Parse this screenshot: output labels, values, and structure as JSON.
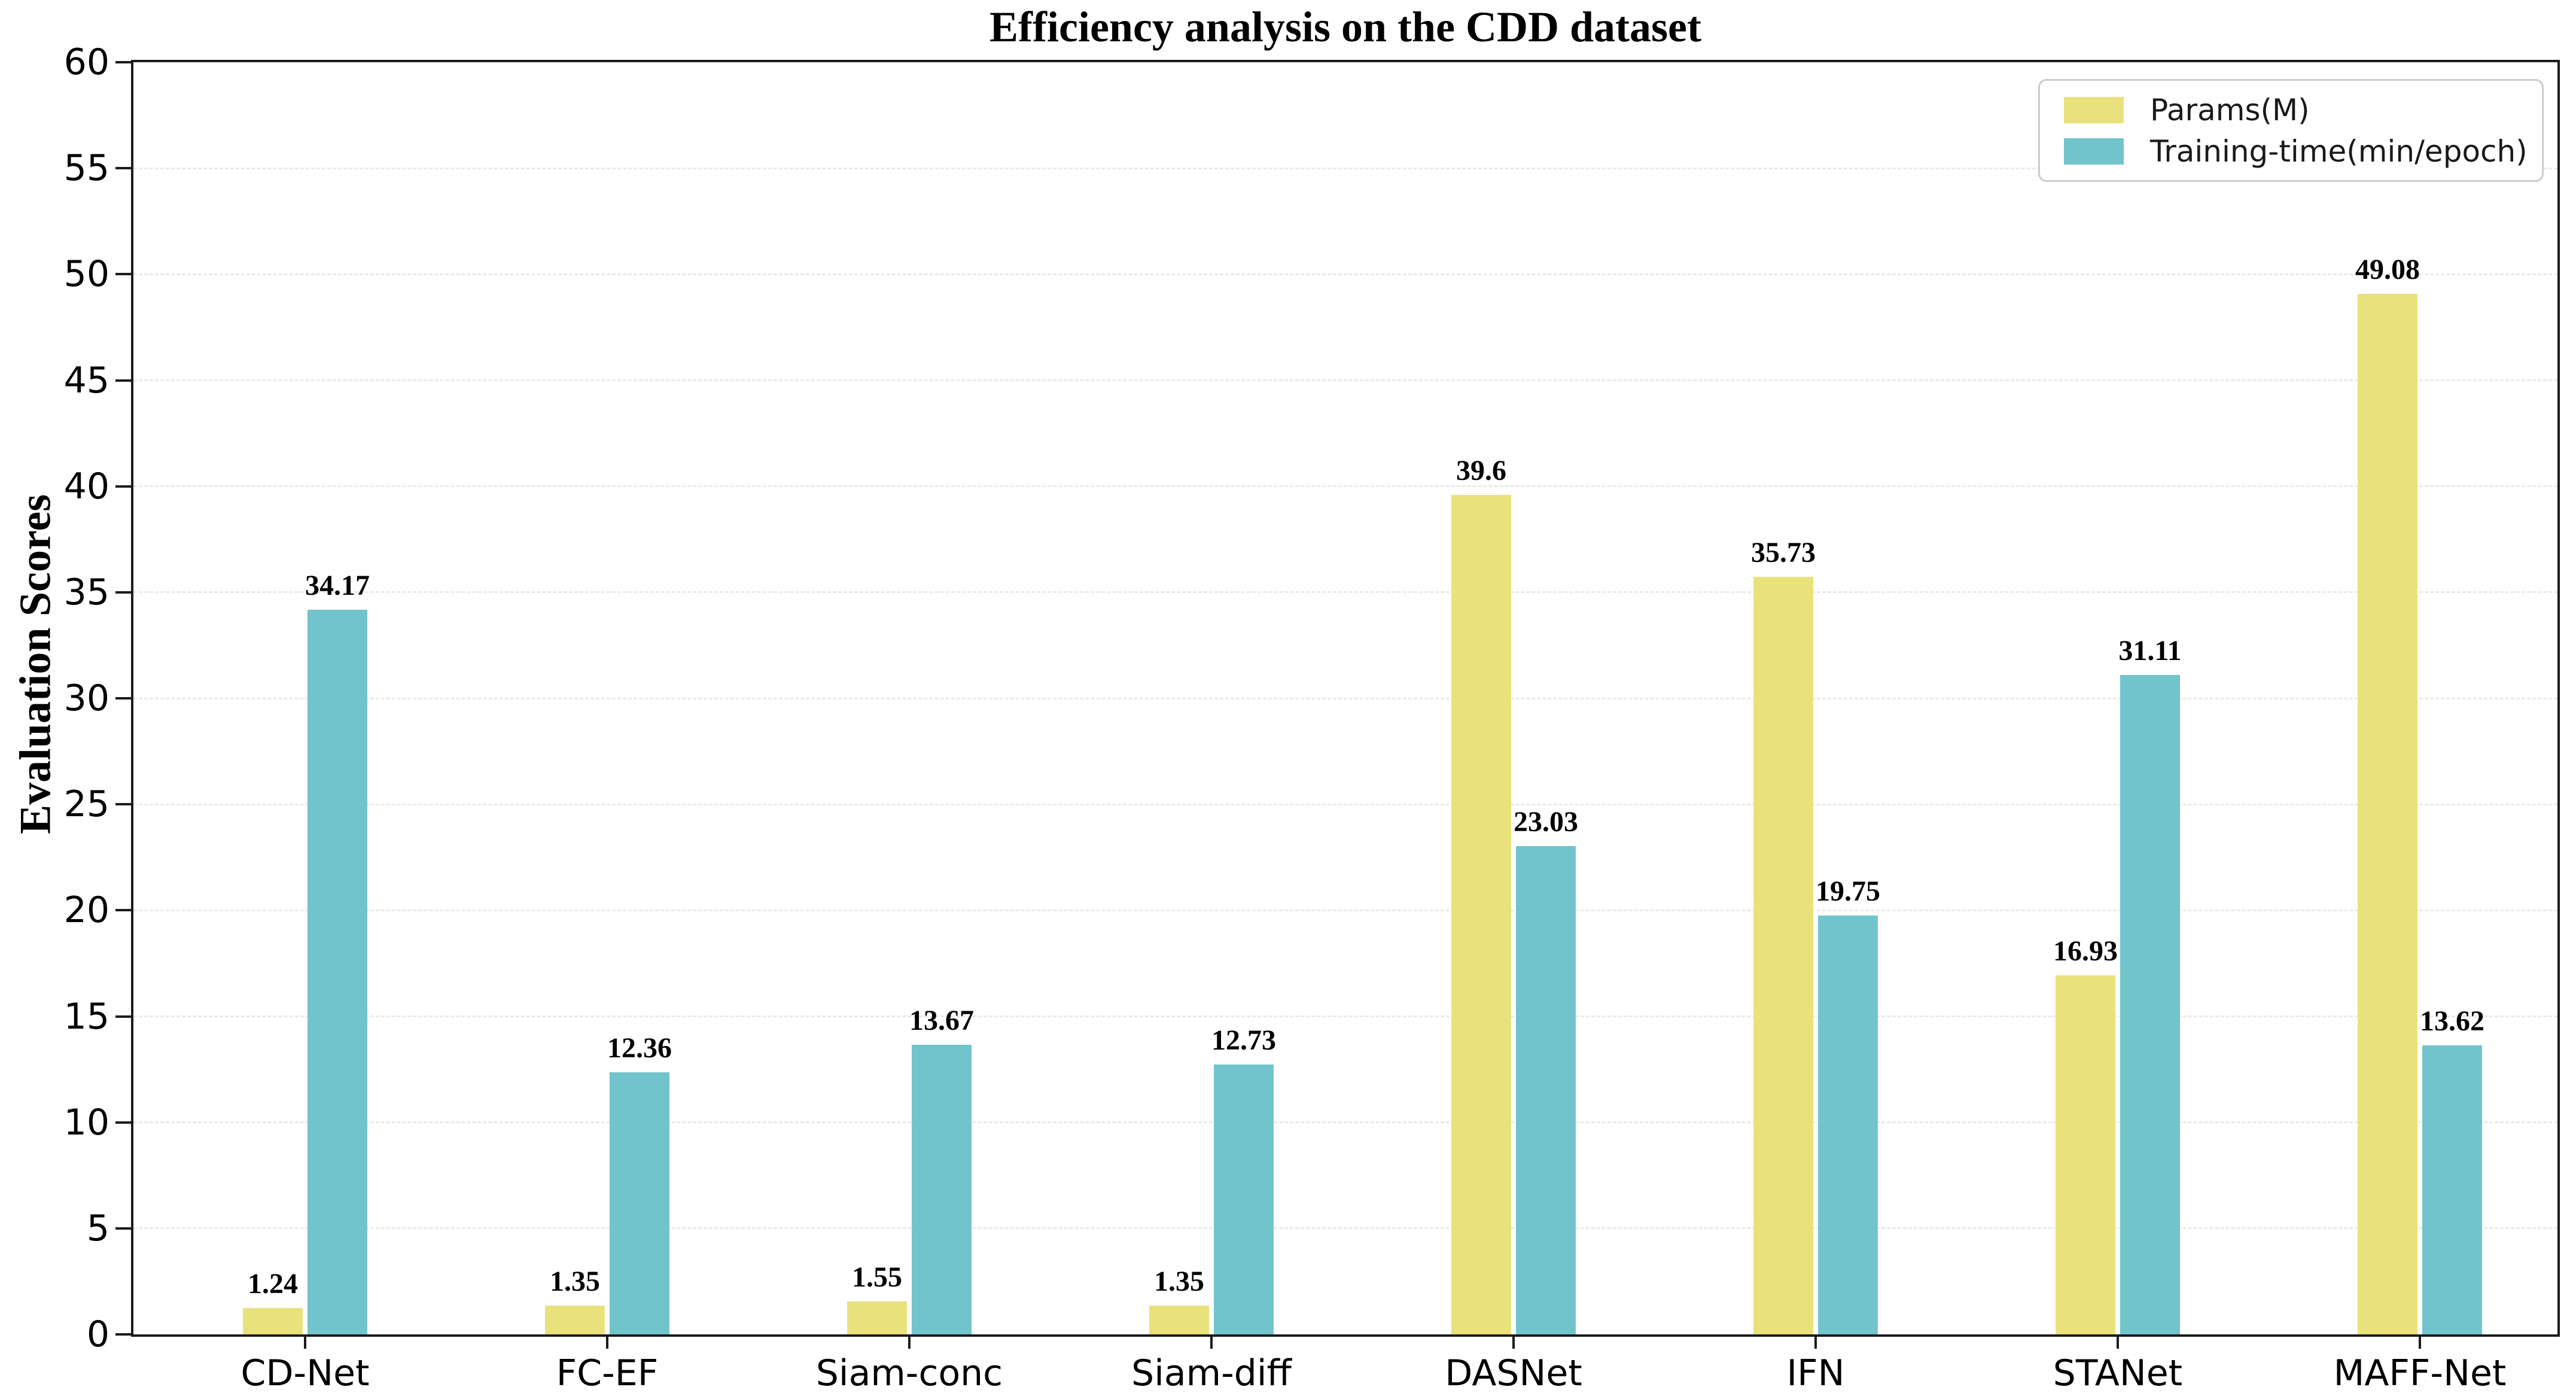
{
  "title": "Efficiency analysis on the CDD dataset",
  "y_axis_label": "Evaluation Scores",
  "chart_data": {
    "type": "bar",
    "title": "Efficiency analysis on the CDD dataset",
    "xlabel": "",
    "ylabel": "Evaluation Scores",
    "categories": [
      "CD-Net",
      "FC-EF",
      "Siam-conc",
      "Siam-diff",
      "DASNet",
      "IFN",
      "STANet",
      "MAFF-Net"
    ],
    "series": [
      {
        "name": "Params(M)",
        "color": "#e9e17c",
        "values": [
          1.24,
          1.35,
          1.55,
          1.35,
          39.6,
          35.73,
          16.93,
          49.08
        ],
        "labels": [
          "1.24",
          "1.35",
          "1.55",
          "1.35",
          "39.6",
          "35.73",
          "16.93",
          "49.08"
        ]
      },
      {
        "name": "Training-time(min/epoch)",
        "color": "#72c4cc",
        "values": [
          34.17,
          12.36,
          13.67,
          12.73,
          23.03,
          19.75,
          31.11,
          13.62
        ],
        "labels": [
          "34.17",
          "12.36",
          "13.67",
          "12.73",
          "23.03",
          "19.75",
          "31.11",
          "13.62"
        ]
      }
    ],
    "ylim": [
      0,
      60
    ],
    "yticks": [
      0,
      5,
      10,
      15,
      20,
      25,
      30,
      35,
      40,
      45,
      50,
      55,
      60
    ],
    "grid": true,
    "grid_color": "#e9e9e9",
    "spine_color": "#1b1b1b",
    "legend_position": "upper-right"
  }
}
